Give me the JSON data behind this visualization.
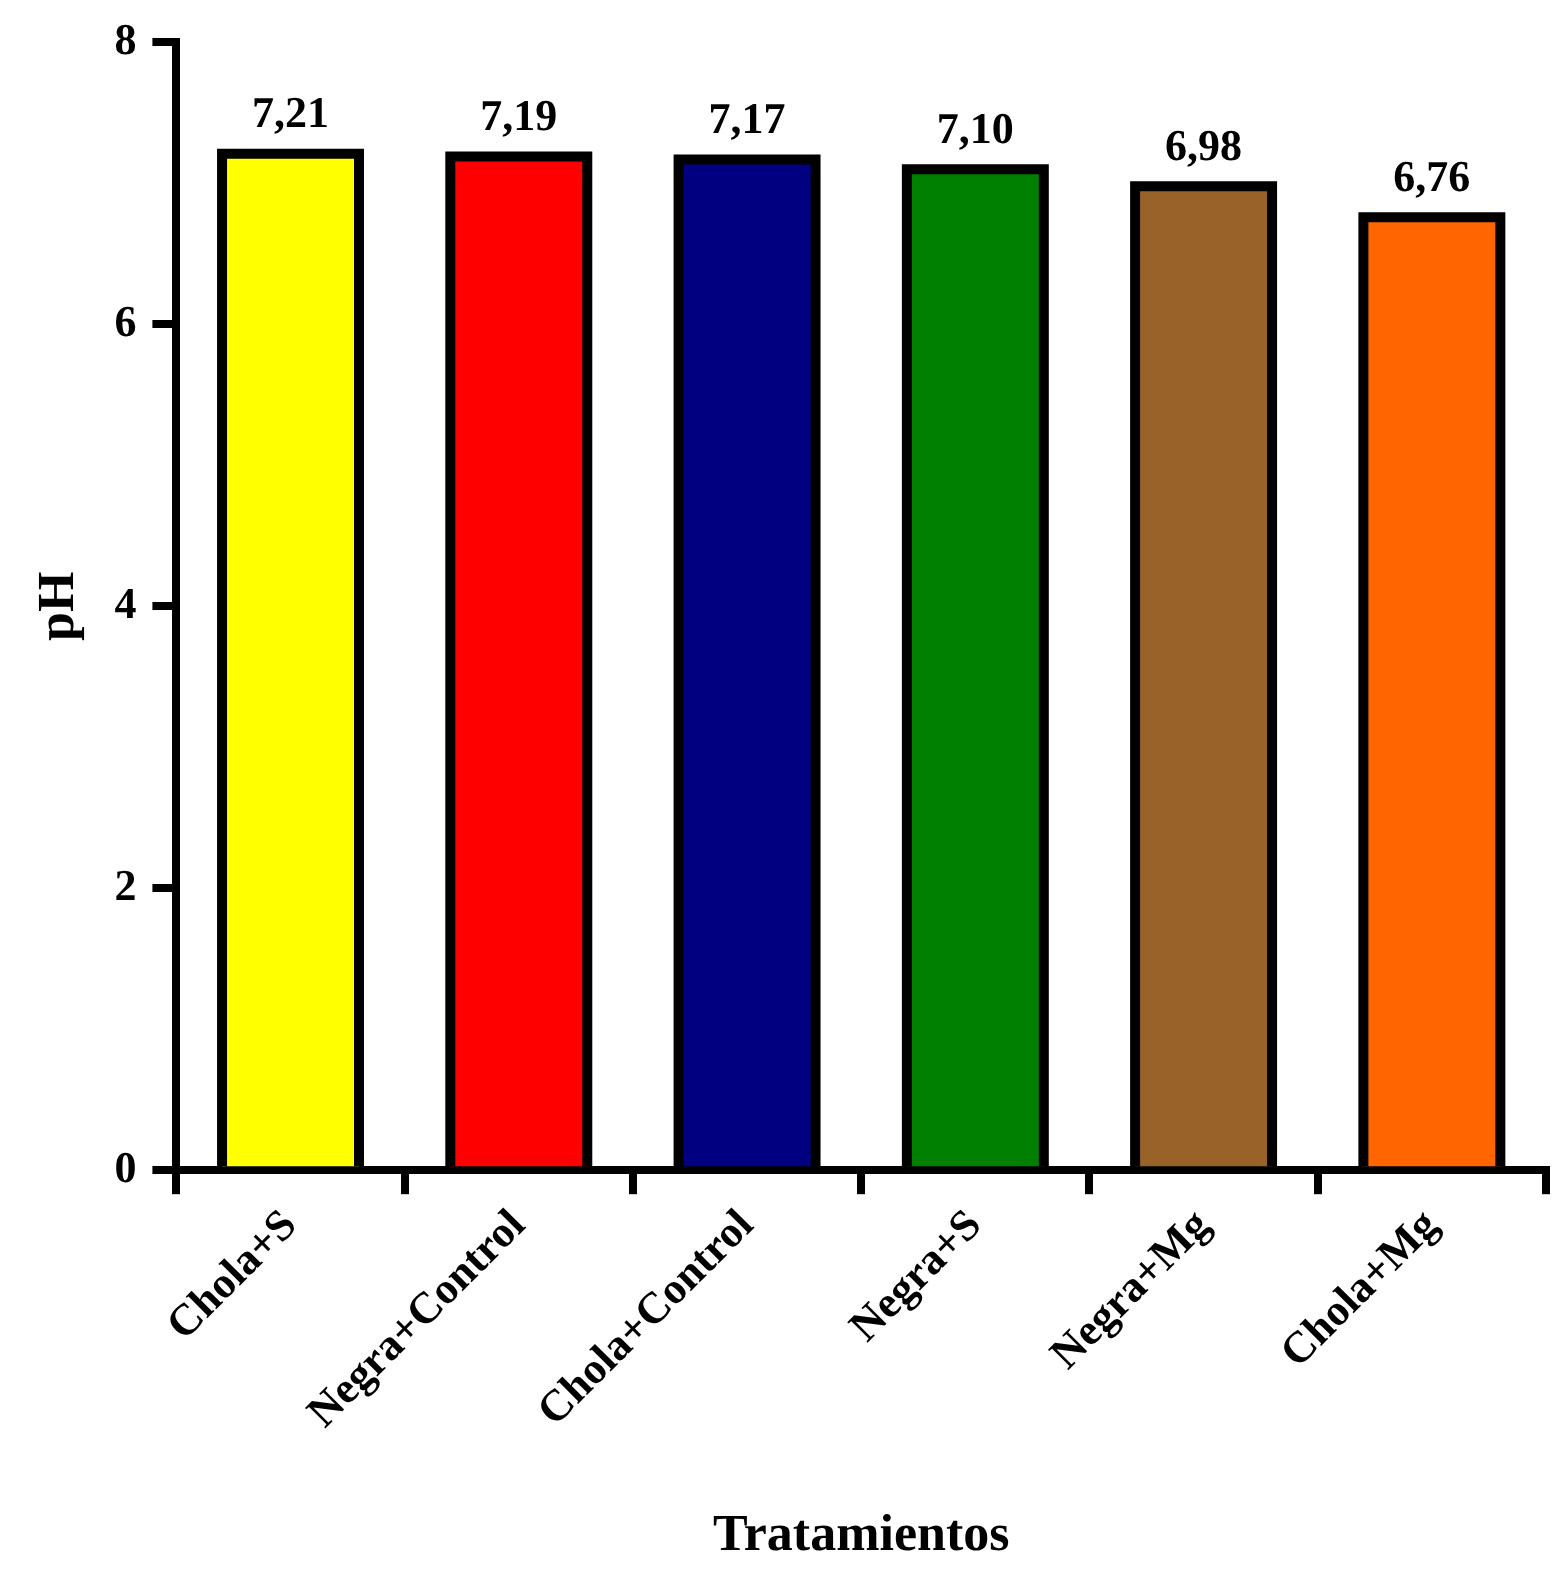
{
  "chart_data": {
    "type": "bar",
    "xlabel": "Tratamientos",
    "ylabel": "pH",
    "categories": [
      "Chola+S",
      "Negra+Control",
      "Chola+Control",
      "Negra+S",
      "Negra+Mg",
      "Chola+Mg"
    ],
    "values": [
      7.21,
      7.19,
      7.17,
      7.1,
      6.98,
      6.76
    ],
    "colors": [
      "#ffff00",
      "#ff0000",
      "#000080",
      "#008000",
      "#996228",
      "#ff6600"
    ],
    "value_labels": [
      "7,21",
      "7,19",
      "7,17",
      "7,10",
      "6,98",
      "6,76"
    ],
    "ylim": [
      0,
      8
    ],
    "yticks": [
      0,
      2,
      4,
      6,
      8
    ],
    "grid": false,
    "legend": false
  }
}
